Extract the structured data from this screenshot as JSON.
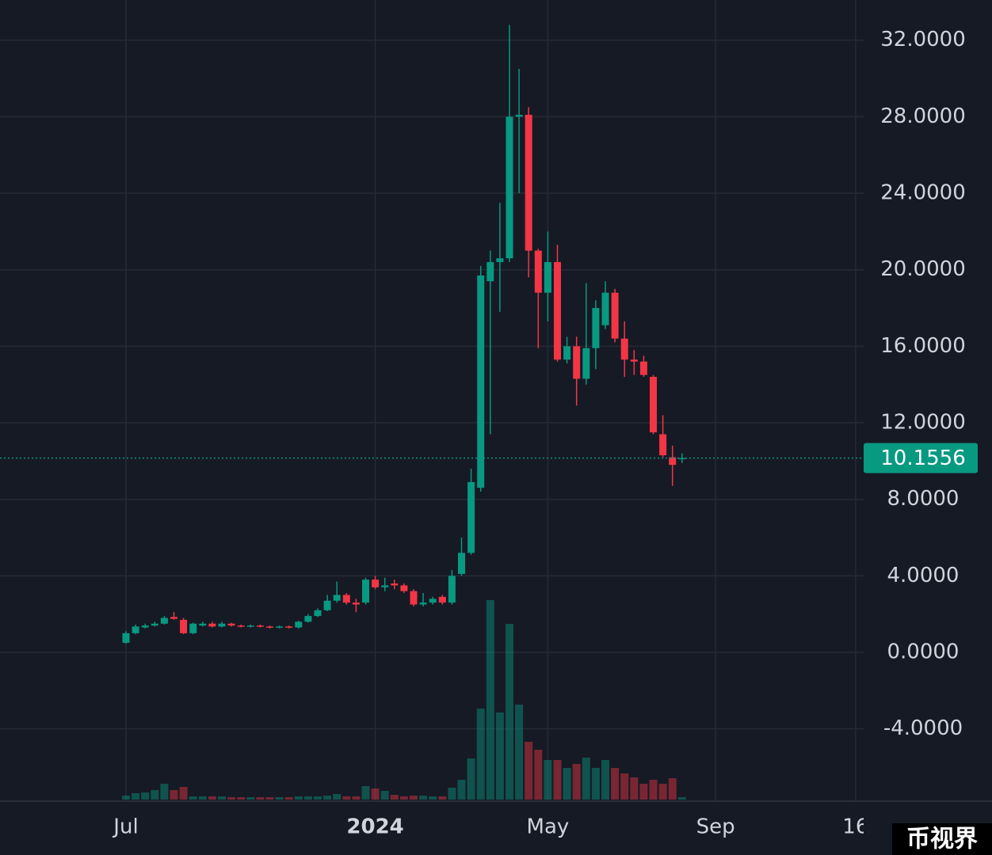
{
  "chart_data": {
    "type": "candlestick",
    "open": [
      0.5,
      1.0,
      1.3,
      1.4,
      1.5,
      1.85,
      1.7,
      1.0,
      1.4,
      1.5,
      1.35,
      1.5,
      1.4,
      1.35,
      1.4,
      1.35,
      1.3,
      1.35,
      1.3,
      1.6,
      1.9,
      2.2,
      2.7,
      3.0,
      2.6,
      2.6,
      3.8,
      3.4,
      3.6,
      3.5,
      3.2,
      2.5,
      2.6,
      2.9,
      2.6,
      4.1,
      5.2,
      8.6,
      19.4,
      20.4,
      20.6,
      28.0,
      28.1,
      21.0,
      18.8,
      20.4,
      15.3,
      16.0,
      14.3,
      15.9,
      17.1,
      18.8,
      16.4,
      15.3,
      15.2,
      14.4,
      11.4,
      10.2,
      10.1
    ],
    "high": [
      1.1,
      1.45,
      1.5,
      1.6,
      1.9,
      2.1,
      1.8,
      1.55,
      1.6,
      1.6,
      1.6,
      1.55,
      1.45,
      1.45,
      1.45,
      1.4,
      1.4,
      1.4,
      1.65,
      2.0,
      2.3,
      3.0,
      3.7,
      3.1,
      2.8,
      3.9,
      4.0,
      3.9,
      3.8,
      3.6,
      3.3,
      3.1,
      2.9,
      3.0,
      4.3,
      6.0,
      9.6,
      20.2,
      21.0,
      23.5,
      32.8,
      30.5,
      28.5,
      21.1,
      22.0,
      21.3,
      16.5,
      16.5,
      19.3,
      18.4,
      19.4,
      19.0,
      17.3,
      15.8,
      15.5,
      14.5,
      12.4,
      10.8,
      10.4
    ],
    "low": [
      0.45,
      0.95,
      1.25,
      1.35,
      1.45,
      1.7,
      0.95,
      0.95,
      1.35,
      1.3,
      1.3,
      1.35,
      1.3,
      1.3,
      1.3,
      1.25,
      1.25,
      1.25,
      1.25,
      1.55,
      1.85,
      2.15,
      2.6,
      2.5,
      2.1,
      2.5,
      3.3,
      3.2,
      3.3,
      3.1,
      2.4,
      2.4,
      2.5,
      2.5,
      2.5,
      4.0,
      5.1,
      8.4,
      11.4,
      17.8,
      20.4,
      24.0,
      19.6,
      15.9,
      17.3,
      15.2,
      15.1,
      12.9,
      14.0,
      14.8,
      16.9,
      16.2,
      14.4,
      14.5,
      14.4,
      11.4,
      10.2,
      8.7,
      9.9
    ],
    "close": [
      1.0,
      1.35,
      1.4,
      1.5,
      1.8,
      1.75,
      1.0,
      1.5,
      1.5,
      1.35,
      1.5,
      1.4,
      1.35,
      1.4,
      1.35,
      1.3,
      1.35,
      1.3,
      1.6,
      1.9,
      2.2,
      2.7,
      3.0,
      2.6,
      2.5,
      3.8,
      3.4,
      3.5,
      3.5,
      3.2,
      2.5,
      2.6,
      2.8,
      2.6,
      4.0,
      5.2,
      8.9,
      19.7,
      20.4,
      20.6,
      28.0,
      28.1,
      21.0,
      18.8,
      20.4,
      15.3,
      16.0,
      14.3,
      15.9,
      18.0,
      18.8,
      16.4,
      15.3,
      15.2,
      14.5,
      11.5,
      10.3,
      9.8,
      10.1556
    ],
    "volume": [
      5,
      8,
      9,
      12,
      20,
      12,
      16,
      4,
      4,
      4,
      4,
      3,
      3,
      3,
      3,
      3,
      3,
      3,
      4,
      4,
      4,
      5,
      7,
      4,
      4,
      17,
      14,
      11,
      6,
      4,
      5,
      5,
      4,
      4,
      15,
      25,
      52,
      115,
      252,
      110,
      222,
      120,
      73,
      63,
      50,
      50,
      40,
      45,
      53,
      40,
      50,
      40,
      33,
      28,
      20,
      25,
      20,
      27,
      3
    ],
    "up_color": "#089981",
    "down_color": "#f23645",
    "last_price": 10.1556,
    "ylim": [
      -7.78,
      34.1
    ],
    "yticks": [
      {
        "value": 32,
        "label": "32.0000"
      },
      {
        "value": 28,
        "label": "28.0000"
      },
      {
        "value": 24,
        "label": "24.0000"
      },
      {
        "value": 20,
        "label": "20.0000"
      },
      {
        "value": 16,
        "label": "16.0000"
      },
      {
        "value": 12,
        "label": "12.0000"
      },
      {
        "value": 8,
        "label": "8.0000"
      },
      {
        "value": 4,
        "label": "4.0000"
      },
      {
        "value": 0,
        "label": "0.0000"
      },
      {
        "value": -4,
        "label": "-4.0000"
      }
    ],
    "xlim": [
      -13.14,
      76.94
    ],
    "xticks": [
      {
        "value": 0,
        "label": "Jul"
      },
      {
        "value": 26,
        "label": "2024"
      },
      {
        "value": 44,
        "label": "May"
      },
      {
        "value": 61.5,
        "label": "Sep"
      },
      {
        "value": 76.1,
        "label": "16"
      }
    ],
    "grid": true
  },
  "watermark": "币视界"
}
